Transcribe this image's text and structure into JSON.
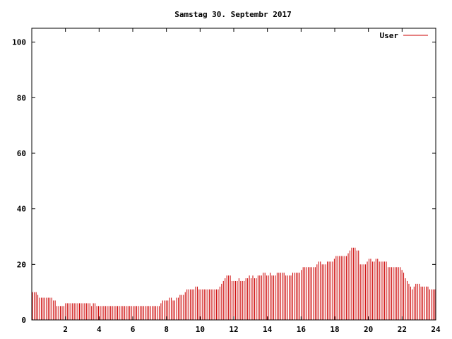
{
  "chart_data": {
    "type": "bar",
    "title": "Samstag 30. Septembr 2017",
    "xlabel": "",
    "ylabel": "",
    "xlim": [
      0,
      24
    ],
    "ylim": [
      0,
      105
    ],
    "x_ticks": [
      2,
      4,
      6,
      8,
      10,
      12,
      14,
      16,
      18,
      20,
      22,
      24
    ],
    "y_ticks": [
      0,
      20,
      40,
      60,
      80,
      100
    ],
    "grid": false,
    "legend_position": "top-right",
    "bar_width_hours": 0.0833,
    "series": [
      {
        "name": "User",
        "color": "#cc0000",
        "values": [
          10,
          10,
          10,
          9,
          8,
          8,
          8,
          8,
          8,
          8,
          8,
          8,
          7,
          7,
          5,
          5,
          5,
          5,
          5,
          6,
          6,
          6,
          6,
          6,
          6,
          6,
          6,
          6,
          6,
          6,
          6,
          6,
          6,
          6,
          5,
          6,
          6,
          5,
          5,
          5,
          5,
          5,
          5,
          5,
          5,
          5,
          5,
          5,
          5,
          5,
          5,
          5,
          5,
          5,
          5,
          5,
          5,
          5,
          5,
          5,
          5,
          5,
          5,
          5,
          5,
          5,
          5,
          5,
          5,
          5,
          5,
          5,
          5,
          5,
          6,
          7,
          7,
          7,
          7,
          8,
          8,
          7,
          7,
          8,
          8,
          9,
          9,
          9,
          10,
          11,
          11,
          11,
          11,
          11,
          12,
          12,
          11,
          11,
          11,
          11,
          11,
          11,
          11,
          11,
          11,
          11,
          11,
          11,
          12,
          13,
          14,
          15,
          16,
          16,
          16,
          14,
          14,
          14,
          14,
          15,
          14,
          14,
          14,
          15,
          15,
          16,
          15,
          16,
          15,
          15,
          16,
          16,
          16,
          17,
          17,
          16,
          16,
          17,
          16,
          16,
          16,
          17,
          17,
          17,
          17,
          17,
          16,
          16,
          16,
          16,
          17,
          17,
          17,
          17,
          17,
          18,
          19,
          19,
          19,
          19,
          19,
          19,
          19,
          19,
          20,
          21,
          21,
          20,
          20,
          20,
          21,
          21,
          21,
          21,
          22,
          23,
          23,
          23,
          23,
          23,
          23,
          23,
          24,
          25,
          26,
          26,
          26,
          25,
          25,
          20,
          20,
          20,
          20,
          21,
          22,
          22,
          21,
          21,
          22,
          22,
          21,
          21,
          21,
          21,
          21,
          19,
          19,
          19,
          19,
          19,
          19,
          19,
          19,
          18,
          17,
          15,
          14,
          13,
          12,
          11,
          12,
          13,
          13,
          13,
          12,
          12,
          12,
          12,
          12,
          11,
          11,
          11,
          11
        ]
      }
    ]
  }
}
